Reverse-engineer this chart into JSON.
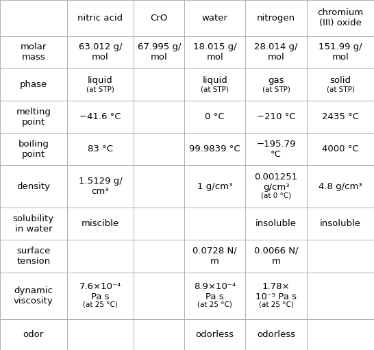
{
  "columns": [
    "",
    "nitric acid",
    "CrO",
    "water",
    "nitrogen",
    "chromium\n(III) oxide"
  ],
  "rows": [
    {
      "label": "molar\nmass",
      "values": [
        "63.012 g/\nmol",
        "67.995 g/\nmol",
        "18.015 g/\nmol",
        "28.014 g/\nmol",
        "151.99 g/\nmol"
      ],
      "small_flags": [
        false,
        false,
        false,
        false,
        false
      ]
    },
    {
      "label": "phase",
      "values": [
        "liquid\n(at STP)",
        "",
        "liquid\n(at STP)",
        "gas\n(at STP)",
        "solid\n(at STP)"
      ],
      "small_flags": [
        true,
        false,
        true,
        true,
        true
      ]
    },
    {
      "label": "melting\npoint",
      "values": [
        "−41.6 °C",
        "",
        "0 °C",
        "−210 °C",
        "2435 °C"
      ],
      "small_flags": [
        false,
        false,
        false,
        false,
        false
      ]
    },
    {
      "label": "boiling\npoint",
      "values": [
        "83 °C",
        "",
        "99.9839 °C",
        "−195.79\n°C",
        "4000 °C"
      ],
      "small_flags": [
        false,
        false,
        false,
        false,
        false
      ]
    },
    {
      "label": "density",
      "values": [
        "1.5129 g/\ncm³",
        "",
        "1 g/cm³",
        "0.001251\ng/cm³\n(at 0 °C)",
        "4.8 g/cm³"
      ],
      "small_flags": [
        false,
        false,
        false,
        true,
        false
      ]
    },
    {
      "label": "solubility\nin water",
      "values": [
        "miscible",
        "",
        "",
        "insoluble",
        "insoluble"
      ],
      "small_flags": [
        false,
        false,
        false,
        false,
        false
      ]
    },
    {
      "label": "surface\ntension",
      "values": [
        "",
        "",
        "0.0728 N/\nm",
        "0.0066 N/\nm",
        ""
      ],
      "small_flags": [
        false,
        false,
        false,
        false,
        false
      ]
    },
    {
      "label": "dynamic\nviscosity",
      "values": [
        "7.6×10⁻⁴\nPa s\n(at 25 °C)",
        "",
        "8.9×10⁻⁴\nPa s\n(at 25 °C)",
        "1.78×\n10⁻⁵ Pa s\n(at 25 °C)",
        ""
      ],
      "small_flags": [
        true,
        false,
        true,
        true,
        false
      ]
    },
    {
      "label": "odor",
      "values": [
        "",
        "",
        "odorless",
        "odorless",
        ""
      ],
      "small_flags": [
        false,
        false,
        false,
        false,
        false
      ]
    }
  ],
  "bg_color": "#ffffff",
  "line_color": "#b0b0b0",
  "text_color": "#000000",
  "font_family": "DejaVu Sans",
  "header_fontsize": 9.5,
  "cell_fontsize": 9.5,
  "label_fontsize": 9.5,
  "small_fontsize": 7.5,
  "col_widths_raw": [
    108,
    108,
    82,
    98,
    100,
    108
  ],
  "row_heights_raw": [
    58,
    52,
    52,
    52,
    52,
    68,
    52,
    52,
    75,
    50
  ]
}
